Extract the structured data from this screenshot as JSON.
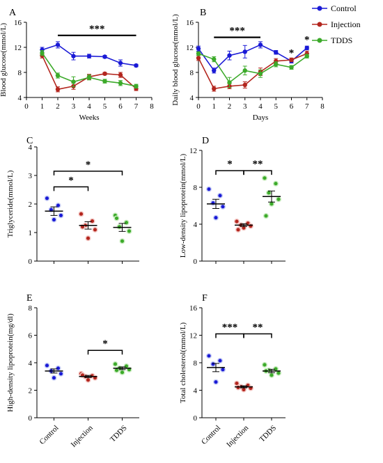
{
  "colors": {
    "control": "#1a1ad6",
    "injection": "#b3261e",
    "tdds": "#3caa2a",
    "control_fill": "#c8cff5",
    "injection_fill": "#f3c7c4",
    "tdds_fill": "#c9ecc0"
  },
  "legend": [
    "Control",
    "Injection",
    "TDDS"
  ],
  "chart_data": [
    {
      "panel": "A",
      "type": "line",
      "xlabel": "Weeks",
      "ylabel": "Blood glucose(mmol/L)",
      "xlim": [
        0,
        8
      ],
      "ylim": [
        4,
        16
      ],
      "xticks": [
        0,
        1,
        2,
        3,
        4,
        5,
        6,
        7,
        8
      ],
      "yticks": [
        4,
        8,
        12,
        16
      ],
      "series": [
        {
          "name": "Control",
          "x": [
            1,
            2,
            3,
            4,
            5,
            6,
            7
          ],
          "values": [
            11.6,
            12.4,
            10.6,
            10.6,
            10.5,
            9.5,
            9.1
          ],
          "err": [
            0.4,
            0.5,
            0.6,
            0.3,
            0.2,
            0.5,
            0.2
          ]
        },
        {
          "name": "Injection",
          "x": [
            1,
            2,
            3,
            4,
            5,
            6,
            7
          ],
          "values": [
            10.7,
            5.3,
            5.8,
            7.3,
            7.8,
            7.6,
            5.4
          ],
          "err": [
            0.4,
            0.4,
            0.5,
            0.4,
            0.2,
            0.4,
            0.3
          ]
        },
        {
          "name": "TDDS",
          "x": [
            1,
            2,
            3,
            4,
            5,
            6,
            7
          ],
          "values": [
            11.1,
            7.5,
            6.5,
            7.2,
            6.6,
            6.3,
            5.8
          ],
          "err": [
            0.4,
            0.4,
            0.8,
            0.4,
            0.3,
            0.4,
            0.3
          ]
        }
      ],
      "significance": [
        {
          "label": "***",
          "x1": 2,
          "x2": 7,
          "y": 13.9
        }
      ]
    },
    {
      "panel": "B",
      "type": "line",
      "xlabel": "Days",
      "ylabel": "Daily blood glucose(mmol/L)",
      "xlim": [
        0,
        8
      ],
      "ylim": [
        4,
        16
      ],
      "xticks": [
        0,
        1,
        2,
        3,
        4,
        5,
        6,
        7,
        8
      ],
      "yticks": [
        4,
        8,
        12,
        16
      ],
      "series": [
        {
          "name": "Control",
          "x": [
            0,
            1,
            2,
            3,
            4,
            5,
            6,
            7
          ],
          "values": [
            11.8,
            8.3,
            10.7,
            11.3,
            12.4,
            11.2,
            9.8,
            11.9
          ],
          "err": [
            0.4,
            0.4,
            0.7,
            1.0,
            0.5,
            0.3,
            0.3,
            0.3
          ]
        },
        {
          "name": "Injection",
          "x": [
            0,
            1,
            2,
            3,
            4,
            5,
            6,
            7
          ],
          "values": [
            10.3,
            5.4,
            5.8,
            6.0,
            8.1,
            9.8,
            10.0,
            11.0
          ],
          "err": [
            0.4,
            0.4,
            0.4,
            0.5,
            0.6,
            0.4,
            0.3,
            0.4
          ]
        },
        {
          "name": "TDDS",
          "x": [
            0,
            1,
            2,
            3,
            4,
            5,
            6,
            7
          ],
          "values": [
            11.0,
            10.1,
            6.4,
            8.3,
            7.8,
            9.3,
            8.8,
            10.6
          ],
          "err": [
            0.3,
            0.4,
            0.8,
            0.7,
            0.6,
            0.4,
            0.3,
            0.3
          ]
        }
      ],
      "significance": [
        {
          "label": "***",
          "x1": 1,
          "x2": 4,
          "y": 13.6
        },
        {
          "label": "*",
          "x": 6,
          "y": 10.6
        },
        {
          "label": "*",
          "x": 7,
          "y": 12.7
        }
      ]
    },
    {
      "panel": "C",
      "type": "scatter",
      "ylabel": "Triglyceride(mmol/L)",
      "ylim": [
        0,
        4
      ],
      "yticks": [
        0,
        1,
        2,
        3,
        4
      ],
      "categories": [
        "Control",
        "Injection",
        "TDDS"
      ],
      "groups": [
        {
          "name": "Control",
          "points": [
            2.2,
            1.95,
            1.8,
            1.6,
            1.45
          ],
          "mean": 1.75,
          "sem": 0.15
        },
        {
          "name": "Injection",
          "points": [
            1.65,
            1.4,
            1.25,
            1.1,
            0.8,
            1.2
          ],
          "mean": 1.25,
          "sem": 0.13
        },
        {
          "name": "TDDS",
          "points": [
            1.6,
            1.35,
            1.2,
            1.05,
            0.7,
            1.5
          ],
          "mean": 1.18,
          "sem": 0.14
        }
      ],
      "significance": [
        {
          "label": "*",
          "g1": 0,
          "g2": 1,
          "y": 2.6
        },
        {
          "label": "*",
          "g1": 0,
          "g2": 2,
          "y": 3.15
        }
      ]
    },
    {
      "panel": "D",
      "type": "scatter",
      "ylabel": "Low-density lipoprotein(mmol/L)",
      "ylim": [
        0,
        12
      ],
      "yticks": [
        0,
        4,
        8,
        12
      ],
      "categories": [
        "Control",
        "Injection",
        "TDDS"
      ],
      "groups": [
        {
          "name": "Control",
          "points": [
            7.8,
            7.1,
            6.3,
            5.9,
            4.7
          ],
          "mean": 6.2,
          "sem": 0.5
        },
        {
          "name": "Injection",
          "points": [
            4.3,
            4.1,
            3.9,
            3.8,
            3.6,
            3.4
          ],
          "mean": 3.9,
          "sem": 0.15
        },
        {
          "name": "TDDS",
          "points": [
            9.0,
            8.4,
            7.4,
            6.7,
            6.2,
            4.9
          ],
          "mean": 7.0,
          "sem": 0.6
        }
      ],
      "significance": [
        {
          "label": "*",
          "g1": 0,
          "g2": 1,
          "y": 9.8
        },
        {
          "label": "**",
          "g1": 1,
          "g2": 2,
          "y": 9.8
        }
      ]
    },
    {
      "panel": "E",
      "type": "scatter",
      "ylabel": "High-density lipoprotein(mg/dl)",
      "ylim": [
        0,
        8
      ],
      "yticks": [
        0,
        2,
        4,
        6,
        8
      ],
      "categories": [
        "Control",
        "Injection",
        "TDDS"
      ],
      "groups": [
        {
          "name": "Control",
          "points": [
            3.8,
            3.6,
            3.4,
            3.2,
            2.9
          ],
          "mean": 3.4,
          "sem": 0.15
        },
        {
          "name": "Injection",
          "points": [
            3.2,
            3.05,
            3.0,
            2.9,
            2.75,
            3.1
          ],
          "mean": 3.0,
          "sem": 0.08
        },
        {
          "name": "TDDS",
          "points": [
            3.9,
            3.75,
            3.6,
            3.5,
            3.3,
            3.45
          ],
          "mean": 3.6,
          "sem": 0.1
        }
      ],
      "significance": [
        {
          "label": "*",
          "g1": 1,
          "g2": 2,
          "y": 4.9
        }
      ]
    },
    {
      "panel": "F",
      "type": "scatter",
      "ylabel": "Total cholesterol(mmol/L)",
      "ylim": [
        0,
        16
      ],
      "yticks": [
        0,
        4,
        8,
        12,
        16
      ],
      "categories": [
        "Control",
        "Injection",
        "TDDS"
      ],
      "groups": [
        {
          "name": "Control",
          "points": [
            9.0,
            8.3,
            7.8,
            7.0,
            5.2
          ],
          "mean": 7.3,
          "sem": 0.6
        },
        {
          "name": "Injection",
          "points": [
            5.0,
            4.7,
            4.5,
            4.3,
            4.1,
            4.4
          ],
          "mean": 4.5,
          "sem": 0.15
        },
        {
          "name": "TDDS",
          "points": [
            7.7,
            7.1,
            6.9,
            6.5,
            6.2,
            6.8
          ],
          "mean": 6.8,
          "sem": 0.25
        }
      ],
      "significance": [
        {
          "label": "***",
          "g1": 0,
          "g2": 1,
          "y": 12.2
        },
        {
          "label": "**",
          "g1": 1,
          "g2": 2,
          "y": 12.2
        }
      ]
    }
  ]
}
